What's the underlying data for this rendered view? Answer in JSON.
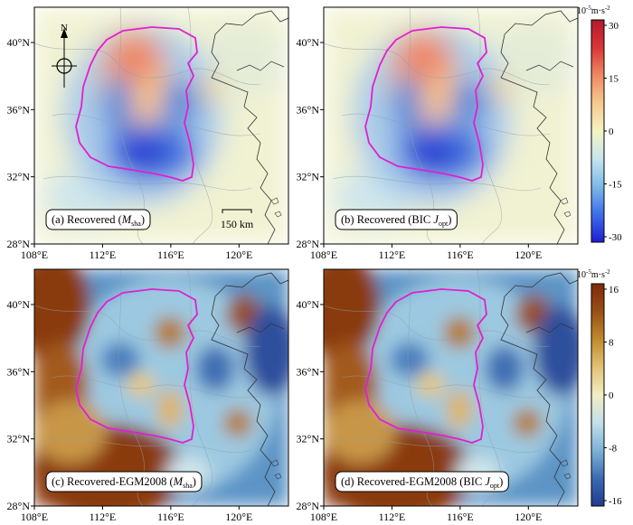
{
  "panels": [
    {
      "id": "a",
      "label_prefix": "(a) Recovered (",
      "label_sym": "M",
      "label_sub": "sha",
      "label_suffix": ")"
    },
    {
      "id": "b",
      "label_prefix": "(b) Recovered (BIC ",
      "label_sym": "J",
      "label_sub": "opt",
      "label_suffix": ")"
    },
    {
      "id": "c",
      "label_prefix": "(c) Recovered-EGM2008 (",
      "label_sym": "M",
      "label_sub": "sha",
      "label_suffix": ")"
    },
    {
      "id": "d",
      "label_prefix": "(d) Recovered-EGM2008 (BIC ",
      "label_sym": "J",
      "label_sub": "opt",
      "label_suffix": ")"
    }
  ],
  "lat_ticks": [
    "40°N",
    "36°N",
    "32°N",
    "28°N"
  ],
  "lon_ticks": [
    "108°E",
    "112°E",
    "116°E",
    "120°E"
  ],
  "scale_bar": "150 km",
  "north_label": "N",
  "colorbars": [
    {
      "unit_base": "10",
      "unit_exp": "-5",
      "unit_rest": "m·s",
      "unit_exp2": "-2",
      "ticks": [
        "30",
        "15",
        "0",
        "-15",
        "-30"
      ],
      "colors": [
        "#1e1ed2",
        "#3c6eeb",
        "#7db9e8",
        "#c4e6ee",
        "#f5f3c2",
        "#f7c98e",
        "#ef8a62",
        "#d93636",
        "#b21a2d"
      ]
    },
    {
      "unit_base": "10",
      "unit_exp": "-5",
      "unit_rest": "m·s",
      "unit_exp2": "-2",
      "ticks": [
        "16",
        "8",
        "0",
        "-8",
        "-16"
      ],
      "colors": [
        "#223a8e",
        "#3a6cb4",
        "#7fb2d8",
        "#c2e0ea",
        "#f2edc2",
        "#e2c274",
        "#c08a2e",
        "#985016",
        "#7e2a08"
      ]
    }
  ]
}
